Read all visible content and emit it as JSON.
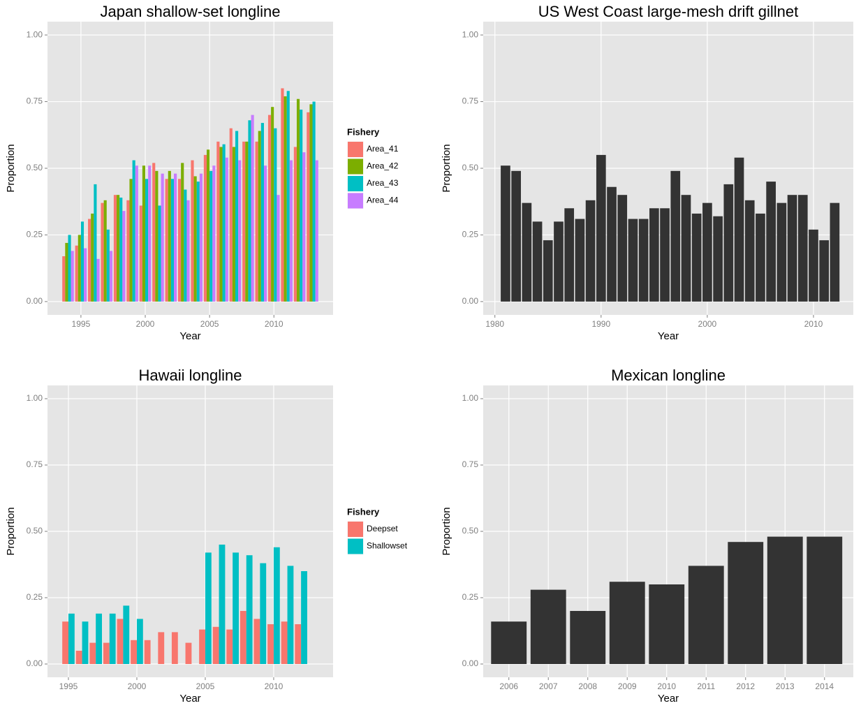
{
  "chart_data": [
    {
      "type": "bar",
      "title": "Japan shallow-set longline",
      "xlabel": "Year",
      "ylabel": "Proportion",
      "legend_title": "Fishery",
      "x": [
        1994,
        1995,
        1996,
        1997,
        1998,
        1999,
        2000,
        2001,
        2002,
        2003,
        2004,
        2005,
        2006,
        2007,
        2008,
        2009,
        2010,
        2011,
        2012,
        2013
      ],
      "series": [
        {
          "name": "Area_41",
          "color": "#F8766D",
          "values": [
            0.17,
            0.21,
            0.31,
            0.37,
            0.4,
            0.38,
            0.36,
            0.52,
            0.46,
            0.46,
            0.53,
            0.55,
            0.6,
            0.65,
            0.6,
            0.6,
            0.7,
            0.8,
            0.58,
            0.71
          ]
        },
        {
          "name": "Area_42",
          "color": "#7CAE00",
          "values": [
            0.22,
            0.25,
            0.33,
            0.38,
            0.4,
            0.46,
            0.51,
            0.49,
            0.49,
            0.52,
            0.47,
            0.57,
            0.58,
            0.58,
            0.6,
            0.64,
            0.73,
            0.77,
            0.76,
            0.74
          ]
        },
        {
          "name": "Area_43",
          "color": "#00BFC4",
          "values": [
            0.25,
            0.3,
            0.44,
            0.27,
            0.39,
            0.53,
            0.46,
            0.36,
            0.46,
            0.42,
            0.45,
            0.49,
            0.59,
            0.64,
            0.68,
            0.67,
            0.65,
            0.79,
            0.72,
            0.75
          ]
        },
        {
          "name": "Area_44",
          "color": "#C77CFF",
          "values": [
            0.19,
            0.2,
            0.16,
            0.19,
            0.34,
            0.51,
            0.51,
            0.48,
            0.48,
            0.38,
            0.48,
            0.51,
            0.54,
            0.53,
            0.7,
            0.51,
            0.4,
            0.53,
            0.56,
            0.53
          ]
        }
      ],
      "xlim": [
        1992.4,
        2014.6
      ],
      "xticks": [
        1995,
        2000,
        2005,
        2010
      ],
      "ylim": [
        -0.05,
        1.05
      ],
      "yticks": [
        {
          "value": 0,
          "label": "0.00"
        },
        {
          "value": 0.25,
          "label": "0.25"
        },
        {
          "value": 0.5,
          "label": "0.50"
        },
        {
          "value": 0.75,
          "label": "0.75"
        },
        {
          "value": 1,
          "label": "1.00"
        }
      ],
      "grid": true
    },
    {
      "type": "bar",
      "title": "US West Coast large-mesh drift gillnet",
      "xlabel": "Year",
      "ylabel": "Proportion",
      "color": "#333333",
      "x": [
        1981,
        1982,
        1983,
        1984,
        1985,
        1986,
        1987,
        1988,
        1989,
        1990,
        1991,
        1992,
        1993,
        1994,
        1995,
        1996,
        1997,
        1998,
        1999,
        2000,
        2001,
        2002,
        2003,
        2004,
        2005,
        2006,
        2007,
        2008,
        2009,
        2010,
        2011,
        2012
      ],
      "values": [
        0.51,
        0.49,
        0.37,
        0.3,
        0.23,
        0.3,
        0.35,
        0.31,
        0.38,
        0.55,
        0.43,
        0.4,
        0.31,
        0.31,
        0.35,
        0.35,
        0.49,
        0.4,
        0.33,
        0.37,
        0.32,
        0.44,
        0.54,
        0.38,
        0.33,
        0.45,
        0.37,
        0.4,
        0.4,
        0.27,
        0.23,
        0.37
      ],
      "xlim": [
        1978.9,
        2013.75
      ],
      "xticks": [
        1980,
        1990,
        2000,
        2010
      ],
      "ylim": [
        -0.05,
        1.05
      ],
      "yticks": [
        {
          "value": 0,
          "label": "0.00"
        },
        {
          "value": 0.25,
          "label": "0.25"
        },
        {
          "value": 0.5,
          "label": "0.50"
        },
        {
          "value": 0.75,
          "label": "0.75"
        },
        {
          "value": 1,
          "label": "1.00"
        }
      ],
      "grid": true
    },
    {
      "type": "bar",
      "title": "Hawaii longline",
      "xlabel": "Year",
      "ylabel": "Proportion",
      "legend_title": "Fishery",
      "x": [
        1995,
        1996,
        1997,
        1998,
        1999,
        2000,
        2001,
        2002,
        2003,
        2004,
        2005,
        2006,
        2007,
        2008,
        2009,
        2010,
        2011,
        2012
      ],
      "series": [
        {
          "name": "Deepset",
          "color": "#F8766D",
          "values": [
            0.16,
            0.05,
            0.08,
            0.08,
            0.17,
            0.09,
            0.09,
            0.12,
            0.12,
            0.08,
            0.13,
            0.14,
            0.13,
            0.2,
            0.17,
            0.15,
            0.16,
            0.15
          ]
        },
        {
          "name": "Shallowset",
          "color": "#00BFC4",
          "values": [
            0.19,
            0.16,
            0.19,
            0.19,
            0.22,
            0.17,
            null,
            null,
            null,
            null,
            0.42,
            0.45,
            0.42,
            0.41,
            0.38,
            0.44,
            0.37,
            0.35
          ]
        }
      ],
      "xlim": [
        1993.47,
        2014.34
      ],
      "xticks": [
        1995,
        2000,
        2005,
        2010
      ],
      "ylim": [
        -0.05,
        1.05
      ],
      "yticks": [
        {
          "value": 0,
          "label": "0.00"
        },
        {
          "value": 0.25,
          "label": "0.25"
        },
        {
          "value": 0.5,
          "label": "0.50"
        },
        {
          "value": 0.75,
          "label": "0.75"
        },
        {
          "value": 1,
          "label": "1.00"
        }
      ],
      "grid": true
    },
    {
      "type": "bar",
      "title": "Mexican longline",
      "xlabel": "Year",
      "ylabel": "Proportion",
      "color": "#333333",
      "x": [
        2006,
        2007,
        2008,
        2009,
        2010,
        2011,
        2012,
        2013,
        2014
      ],
      "values": [
        0.16,
        0.28,
        0.2,
        0.31,
        0.3,
        0.37,
        0.46,
        0.48,
        0.48
      ],
      "xlim": [
        2005.35,
        2014.73
      ],
      "xticks": [
        2006,
        2007,
        2008,
        2009,
        2010,
        2011,
        2012,
        2013,
        2014
      ],
      "ylim": [
        -0.05,
        1.05
      ],
      "yticks": [
        {
          "value": 0,
          "label": "0.00"
        },
        {
          "value": 0.25,
          "label": "0.25"
        },
        {
          "value": 0.5,
          "label": "0.50"
        },
        {
          "value": 0.75,
          "label": "0.75"
        },
        {
          "value": 1,
          "label": "1.00"
        }
      ],
      "grid": true
    }
  ]
}
